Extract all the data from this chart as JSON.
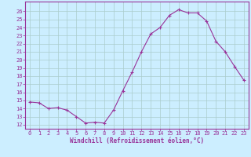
{
  "x": [
    0,
    1,
    2,
    3,
    4,
    5,
    6,
    7,
    8,
    9,
    10,
    11,
    12,
    13,
    14,
    15,
    16,
    17,
    18,
    19,
    20,
    21,
    22,
    23
  ],
  "y": [
    14.8,
    14.7,
    14.0,
    14.1,
    13.8,
    13.0,
    12.2,
    12.3,
    12.2,
    13.8,
    16.2,
    18.5,
    21.0,
    23.2,
    24.0,
    25.5,
    26.2,
    25.8,
    25.8,
    24.8,
    22.3,
    21.0,
    19.2,
    17.5
  ],
  "line_color": "#993399",
  "marker": "+",
  "marker_size": 3,
  "marker_lw": 0.8,
  "bg_color": "#cceeff",
  "grid_color": "#aacccc",
  "xlabel": "Windchill (Refroidissement éolien,°C)",
  "ylabel_ticks": [
    12,
    13,
    14,
    15,
    16,
    17,
    18,
    19,
    20,
    21,
    22,
    23,
    24,
    25,
    26
  ],
  "ylim": [
    11.5,
    27.2
  ],
  "xlim": [
    -0.5,
    23.5
  ],
  "tick_fontsize": 5.0,
  "xlabel_fontsize": 5.5,
  "line_width": 0.8
}
